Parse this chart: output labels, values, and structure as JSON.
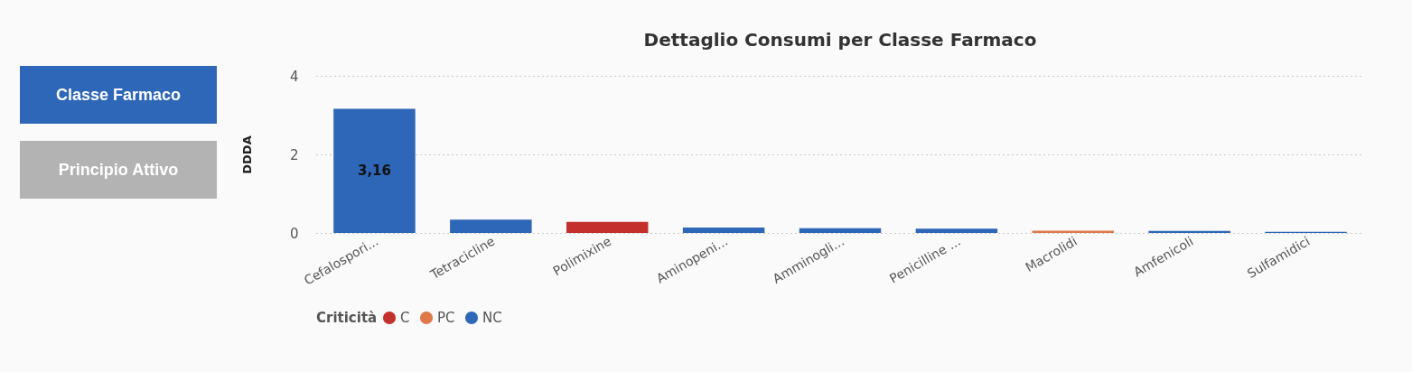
{
  "chart_data": {
    "type": "bar",
    "title": "Dettaglio Consumi per Classe Farmaco",
    "ylabel": "DDDA",
    "legend_title": "Criticità",
    "categories": [
      "Cefalospori...",
      "Tetracicline",
      "Polimixine",
      "Aminopeni...",
      "Amminogli...",
      "Penicilline ...",
      "Macrolidi",
      "Amfenicoli",
      "Sulfamidici"
    ],
    "series": [
      {
        "name": "C",
        "color": "#c4302b",
        "values": [
          null,
          null,
          0.28,
          null,
          null,
          null,
          null,
          null,
          null
        ]
      },
      {
        "name": "PC",
        "color": "#e0794a",
        "values": [
          null,
          null,
          null,
          null,
          null,
          null,
          0.06,
          null,
          null
        ]
      },
      {
        "name": "NC",
        "color": "#2e66b8",
        "values": [
          3.16,
          0.34,
          null,
          0.14,
          0.12,
          0.11,
          null,
          0.05,
          0.03
        ],
        "value_labels": [
          "3,16",
          null,
          null,
          null,
          null,
          null,
          null,
          null,
          null
        ]
      }
    ],
    "ylim": [
      0,
      4
    ],
    "yticks": [
      0,
      2,
      4
    ],
    "grid": "y",
    "legend": "bottom",
    "annotations": [
      "Classe Farmaco",
      "Principio Attivo"
    ]
  }
}
